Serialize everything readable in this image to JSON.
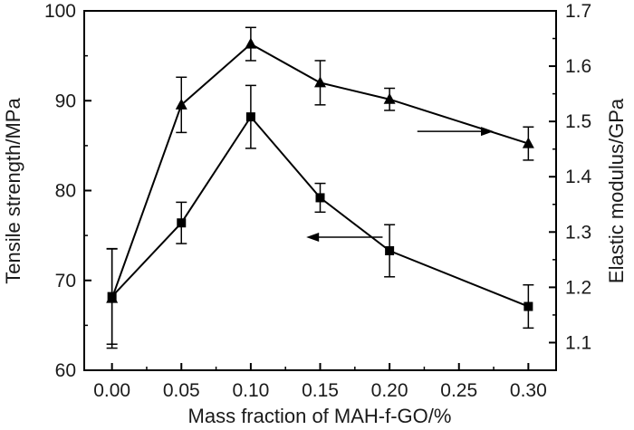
{
  "chart_data": {
    "type": "line",
    "title": "",
    "xlabel": "Mass fraction of MAH-f-GO/%",
    "x": [
      0.0,
      0.05,
      0.1,
      0.15,
      0.2,
      0.3
    ],
    "xlim": [
      -0.02,
      0.32
    ],
    "x_ticks": [
      0.0,
      0.05,
      0.1,
      0.15,
      0.2,
      0.25,
      0.3
    ],
    "x_tick_labels": [
      "0.00",
      "0.05",
      "0.10",
      "0.15",
      "0.20",
      "0.25",
      "0.30"
    ],
    "y_left": {
      "label": "Tensile strength/MPa",
      "lim": [
        60,
        100
      ],
      "ticks": [
        60,
        70,
        80,
        90,
        100
      ],
      "tick_labels": [
        "60",
        "70",
        "80",
        "90",
        "100"
      ]
    },
    "y_right": {
      "label": "Elastic modulus/GPa",
      "lim": [
        1.05,
        1.7
      ],
      "ticks": [
        1.1,
        1.2,
        1.3,
        1.4,
        1.5,
        1.6,
        1.7
      ],
      "tick_labels": [
        "1.1",
        "1.2",
        "1.3",
        "1.4",
        "1.5",
        "1.6",
        "1.7"
      ]
    },
    "series": [
      {
        "marker": "square",
        "axis": "left",
        "values": [
          68.2,
          76.4,
          88.2,
          79.2,
          73.3,
          67.1
        ],
        "error": [
          5.3,
          2.3,
          3.5,
          1.6,
          2.9,
          2.4
        ]
      },
      {
        "marker": "triangle",
        "axis": "right",
        "values": [
          1.18,
          1.53,
          1.64,
          1.57,
          1.54,
          1.46
        ],
        "error": [
          0.09,
          0.05,
          0.03,
          0.04,
          0.02,
          0.03
        ]
      }
    ],
    "annotations": [
      {
        "arrow": "right",
        "points_to": "right-axis",
        "near_series": 1
      },
      {
        "arrow": "left",
        "points_to": "left-axis",
        "near_series": 0
      }
    ],
    "grid": false,
    "legend": "none",
    "colors": {
      "line": "#000000",
      "text": "#1a1a1a"
    }
  }
}
